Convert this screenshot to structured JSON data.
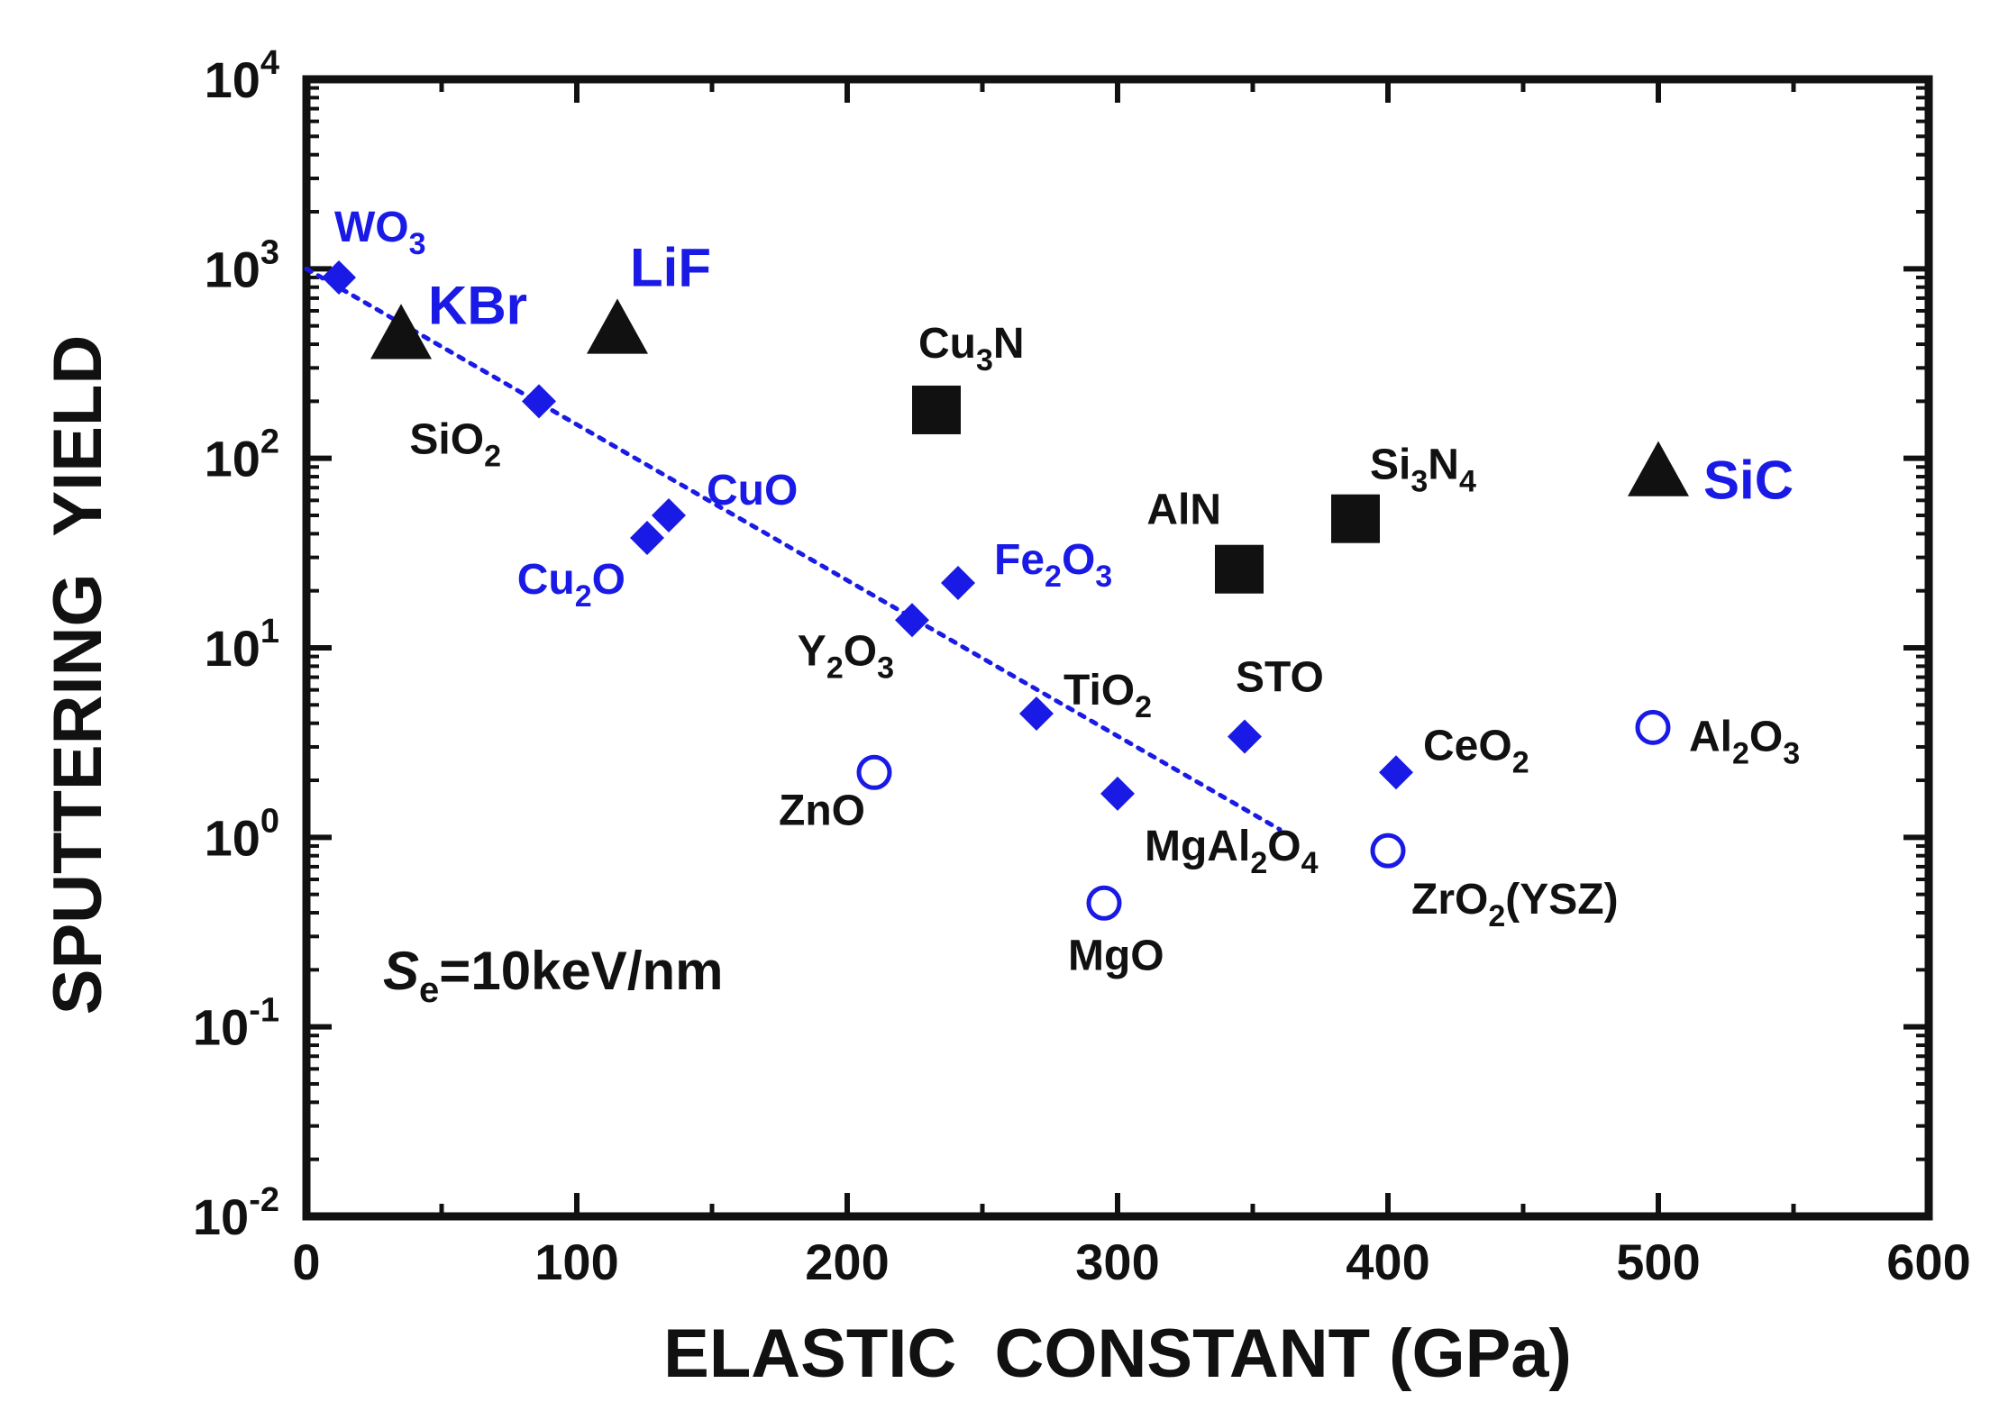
{
  "colors": {
    "blue": "#1a1ae6",
    "black": "#111111",
    "fit_line": "#1a1ae6"
  },
  "chart_data": {
    "type": "scatter",
    "title": "",
    "xlabel": "ELASTIC  CONSTANT (GPa)",
    "ylabel": "SPUTTERING  YIELD",
    "xlim": [
      0,
      600
    ],
    "ylim": [
      0.01,
      10000
    ],
    "yscale": "log",
    "grid": false,
    "x_ticks": [
      "0",
      "100",
      "200",
      "300",
      "400",
      "500",
      "600"
    ],
    "y_ticks": [
      {
        "base": "10",
        "exp": "-2",
        "value": 0.01
      },
      {
        "base": "10",
        "exp": "-1",
        "value": 0.1
      },
      {
        "base": "10",
        "exp": "0",
        "value": 1
      },
      {
        "base": "10",
        "exp": "1",
        "value": 10
      },
      {
        "base": "10",
        "exp": "2",
        "value": 100
      },
      {
        "base": "10",
        "exp": "3",
        "value": 1000
      },
      {
        "base": "10",
        "exp": "4",
        "value": 10000
      }
    ],
    "annotation": {
      "symbol": "S",
      "sub": "e",
      "text": "=10keV/nm"
    },
    "fit_line": {
      "x": [
        0,
        360
      ],
      "y": [
        1000,
        1.1
      ],
      "style": "dotted"
    },
    "points": [
      {
        "label": "WO",
        "sub": "3",
        "x": 12,
        "y": 900,
        "marker": "filled-diamond",
        "color": "blue",
        "label_color": "blue"
      },
      {
        "label": "KBr",
        "sub": "",
        "x": 35,
        "y": 450,
        "marker": "triangle",
        "color": "black",
        "label_color": "blue"
      },
      {
        "label": "LiF",
        "sub": "",
        "x": 115,
        "y": 480,
        "marker": "triangle",
        "color": "black",
        "label_color": "blue"
      },
      {
        "label": "SiO",
        "sub": "2",
        "x": 86,
        "y": 200,
        "marker": "filled-diamond",
        "color": "blue",
        "label_color": "black"
      },
      {
        "label": "CuO",
        "sub": "",
        "x": 134,
        "y": 50,
        "marker": "filled-diamond",
        "color": "blue",
        "label_color": "blue"
      },
      {
        "label": "Cu",
        "sub": "2",
        "suffix": "O",
        "x": 126,
        "y": 38,
        "marker": "filled-diamond",
        "color": "blue",
        "label_color": "blue"
      },
      {
        "label": "Cu",
        "sub": "3",
        "suffix": "N",
        "x": 233,
        "y": 180,
        "marker": "square",
        "color": "black",
        "label_color": "black"
      },
      {
        "label": "Fe",
        "sub": "2",
        "suffix": "O",
        "sub2": "3",
        "x": 241,
        "y": 22,
        "marker": "filled-diamond",
        "color": "blue",
        "label_color": "blue"
      },
      {
        "label": "Y",
        "sub": "2",
        "suffix": "O",
        "sub2": "3",
        "x": 224,
        "y": 14,
        "marker": "filled-diamond",
        "color": "blue",
        "label_color": "black"
      },
      {
        "label": "TiO",
        "sub": "2",
        "x": 270,
        "y": 4.5,
        "marker": "filled-diamond",
        "color": "blue",
        "label_color": "black"
      },
      {
        "label": "ZnO",
        "sub": "",
        "x": 210,
        "y": 2.2,
        "marker": "open-circle",
        "color": "blue",
        "label_color": "black"
      },
      {
        "label": "MgAl",
        "sub": "2",
        "suffix": "O",
        "sub2": "4",
        "x": 300,
        "y": 1.7,
        "marker": "filled-diamond",
        "color": "blue",
        "label_color": "black"
      },
      {
        "label": "MgO",
        "sub": "",
        "x": 295,
        "y": 0.45,
        "marker": "open-circle",
        "color": "blue",
        "label_color": "black"
      },
      {
        "label": "AlN",
        "sub": "",
        "x": 345,
        "y": 26,
        "marker": "square",
        "color": "black",
        "label_color": "black"
      },
      {
        "label": "STO",
        "sub": "",
        "x": 347,
        "y": 3.4,
        "marker": "filled-diamond",
        "color": "blue",
        "label_color": "black"
      },
      {
        "label": "Si",
        "sub": "3",
        "suffix": "N",
        "sub2": "4",
        "x": 388,
        "y": 48,
        "marker": "square",
        "color": "black",
        "label_color": "black"
      },
      {
        "label": "CeO",
        "sub": "2",
        "x": 403,
        "y": 2.2,
        "marker": "filled-diamond",
        "color": "blue",
        "label_color": "black"
      },
      {
        "label": "ZrO",
        "sub": "2",
        "suffix": "(YSZ)",
        "x": 400,
        "y": 0.85,
        "marker": "open-circle",
        "color": "blue",
        "label_color": "black"
      },
      {
        "label": "SiC",
        "sub": "",
        "x": 500,
        "y": 85,
        "marker": "triangle",
        "color": "black",
        "label_color": "blue"
      },
      {
        "label": "Al",
        "sub": "2",
        "suffix": "O",
        "sub2": "3",
        "x": 498,
        "y": 3.8,
        "marker": "open-circle",
        "color": "blue",
        "label_color": "black"
      }
    ]
  }
}
